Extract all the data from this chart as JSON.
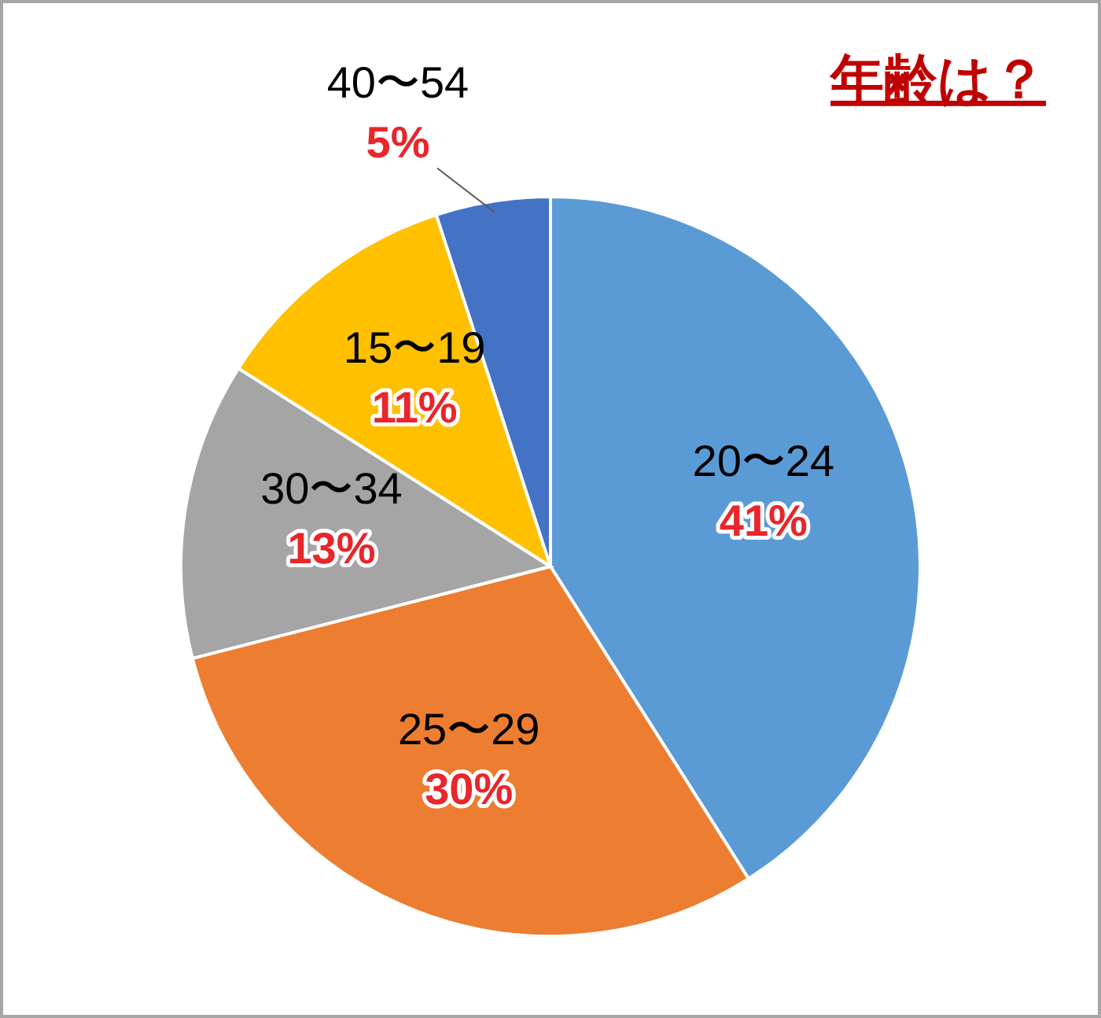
{
  "chart_data": {
    "type": "pie",
    "title": "年齢は？",
    "categories": [
      "20〜24",
      "25〜29",
      "30〜34",
      "15〜19",
      "40〜54"
    ],
    "values": [
      41,
      30,
      13,
      11,
      5
    ],
    "colors": [
      "#5b9bd5",
      "#ed7d31",
      "#a5a5a5",
      "#ffc000",
      "#4472c4"
    ],
    "value_labels": [
      "41%",
      "30%",
      "13%",
      "11%",
      "5%"
    ]
  }
}
